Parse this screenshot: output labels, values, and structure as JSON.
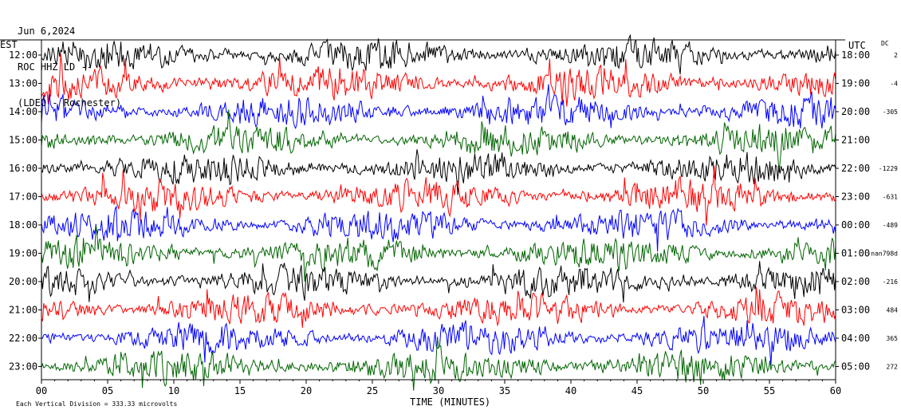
{
  "header": {
    "date": "Jun 6,2024",
    "station": "ROC HHZ LD --",
    "network": "(LDEO - Rochester)"
  },
  "axes": {
    "left_label": "EST",
    "right_label": "UTC",
    "dc_label": "DC",
    "xlabel": "TIME (MINUTES)",
    "footnote": "Each Vertical Division =  333.33 microvolts"
  },
  "colors": {
    "trace_cycle": [
      "#000000",
      "#ff0000",
      "#0000ff",
      "#006400"
    ]
  },
  "chart_data": {
    "type": "line",
    "title": "",
    "xlabel": "TIME (MINUTES)",
    "xlim": [
      0,
      60
    ],
    "x_ticks": [
      "00",
      "05",
      "10",
      "15",
      "20",
      "25",
      "30",
      "35",
      "40",
      "45",
      "50",
      "55",
      "60"
    ],
    "rows": [
      {
        "est": "12:00",
        "utc": "18:00",
        "dc": "2"
      },
      {
        "est": "13:00",
        "utc": "19:00",
        "dc": "-4"
      },
      {
        "est": "14:00",
        "utc": "20:00",
        "dc": "-305"
      },
      {
        "est": "15:00",
        "utc": "21:00",
        "dc": ""
      },
      {
        "est": "16:00",
        "utc": "22:00",
        "dc": "-1229"
      },
      {
        "est": "17:00",
        "utc": "23:00",
        "dc": "-631"
      },
      {
        "est": "18:00",
        "utc": "00:00",
        "dc": "-489"
      },
      {
        "est": "19:00",
        "utc": "01:00",
        "dc": "-nan798d"
      },
      {
        "est": "20:00",
        "utc": "02:00",
        "dc": "-216"
      },
      {
        "est": "21:00",
        "utc": "03:00",
        "dc": "484"
      },
      {
        "est": "22:00",
        "utc": "04:00",
        "dc": "365"
      },
      {
        "est": "23:00",
        "utc": "05:00",
        "dc": "272"
      }
    ],
    "grid": false
  }
}
